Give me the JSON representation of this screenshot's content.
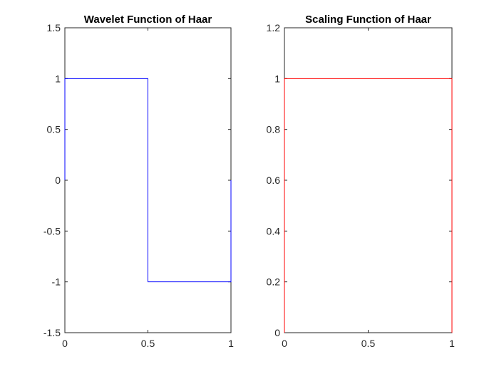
{
  "chart_data": [
    {
      "type": "line",
      "title": "Wavelet Function of Haar",
      "xlabel": "",
      "ylabel": "",
      "xlim": [
        0,
        1
      ],
      "ylim": [
        -1.5,
        1.5
      ],
      "xticks": [
        "0",
        "0.5",
        "1"
      ],
      "yticks": [
        "-1.5",
        "-1",
        "-0.5",
        "0",
        "0.5",
        "1",
        "1.5"
      ],
      "grid": false,
      "color": "#0000ff",
      "series": [
        {
          "x": [
            0,
            0,
            0.5,
            0.5,
            1,
            1
          ],
          "y": [
            0,
            1,
            1,
            -1,
            -1,
            0
          ]
        }
      ]
    },
    {
      "type": "line",
      "title": "Scaling Function of Haar",
      "xlabel": "",
      "ylabel": "",
      "xlim": [
        0,
        1
      ],
      "ylim": [
        0,
        1.2
      ],
      "xticks": [
        "0",
        "0.5",
        "1"
      ],
      "yticks": [
        "0",
        "0.2",
        "0.4",
        "0.6",
        "0.8",
        "1",
        "1.2"
      ],
      "grid": false,
      "color": "#ff0000",
      "series": [
        {
          "x": [
            0,
            0,
            1,
            1
          ],
          "y": [
            0,
            1,
            1,
            0
          ]
        }
      ]
    }
  ]
}
